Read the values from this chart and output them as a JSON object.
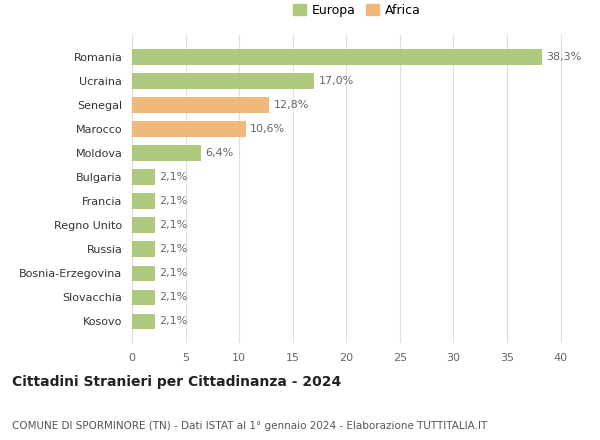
{
  "categories": [
    "Romania",
    "Ucraina",
    "Senegal",
    "Marocco",
    "Moldova",
    "Bulgaria",
    "Francia",
    "Regno Unito",
    "Russia",
    "Bosnia-Erzegovina",
    "Slovacchia",
    "Kosovo"
  ],
  "values": [
    38.3,
    17.0,
    12.8,
    10.6,
    6.4,
    2.1,
    2.1,
    2.1,
    2.1,
    2.1,
    2.1,
    2.1
  ],
  "labels": [
    "38,3%",
    "17,0%",
    "12,8%",
    "10,6%",
    "6,4%",
    "2,1%",
    "2,1%",
    "2,1%",
    "2,1%",
    "2,1%",
    "2,1%",
    "2,1%"
  ],
  "continent": [
    "Europa",
    "Europa",
    "Africa",
    "Africa",
    "Europa",
    "Europa",
    "Europa",
    "Europa",
    "Europa",
    "Europa",
    "Europa",
    "Europa"
  ],
  "color_europa": "#adc97e",
  "color_africa": "#f0b97a",
  "background_color": "#ffffff",
  "grid_color": "#dddddd",
  "title": "Cittadini Stranieri per Cittadinanza - 2024",
  "subtitle": "COMUNE DI SPORMINORE (TN) - Dati ISTAT al 1° gennaio 2024 - Elaborazione TUTTITALIA.IT",
  "legend_europa": "Europa",
  "legend_africa": "Africa",
  "xlim": [
    0,
    42
  ],
  "xticks": [
    0,
    5,
    10,
    15,
    20,
    25,
    30,
    35,
    40
  ],
  "title_fontsize": 10,
  "subtitle_fontsize": 7.5,
  "label_fontsize": 8,
  "tick_fontsize": 8,
  "legend_fontsize": 9
}
